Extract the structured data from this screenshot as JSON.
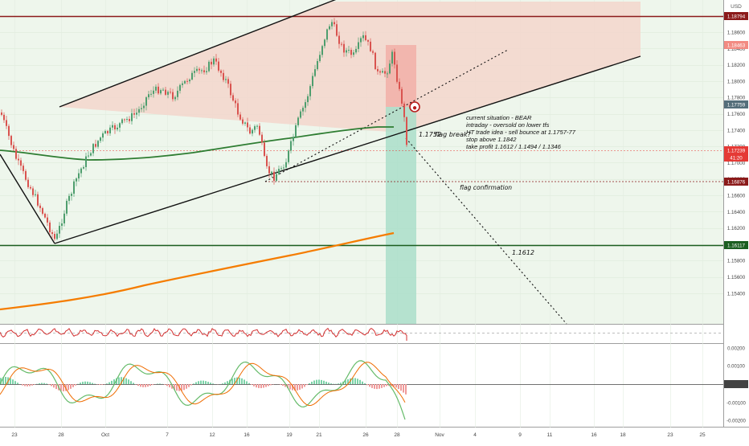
{
  "window": {
    "currency": "USD"
  },
  "colors": {
    "bg_green": "#eef6ec",
    "pink_zone": "#f3d6cc",
    "red_box": "#f2a9a2",
    "teal_box": "#a6ddc8",
    "candle_up": "#4e9e6e",
    "candle_down": "#d9534f",
    "ma_green": "#2e7d32",
    "ma_orange": "#f57c00",
    "top_line": "#8b1a1a",
    "support_line": "#1b5e20",
    "price_tag": "#e53935"
  },
  "price_scale": {
    "ticks": [
      "1.18600",
      "1.18400",
      "1.18200",
      "1.18000",
      "1.17800",
      "1.17600",
      "1.17400",
      "1.17200",
      "1.17000",
      "1.16800",
      "1.16600",
      "1.16400",
      "1.16200",
      "1.16000",
      "1.15800",
      "1.15600",
      "1.15400"
    ],
    "tags": [
      {
        "id": "top",
        "label": "1.18794",
        "color": "#8b1a1a"
      },
      {
        "id": "entry",
        "label": "1.18463",
        "color": "#f28b82"
      },
      {
        "id": "break",
        "label": "1.17759",
        "color": "#546e7a"
      },
      {
        "id": "last",
        "label": "1.17239",
        "color": "#e53935"
      },
      {
        "id": "countdown",
        "label": "41:20",
        "color": "#e53935"
      },
      {
        "id": "flag",
        "label": "1.16876",
        "color": "#8b1a1a"
      },
      {
        "id": "support",
        "label": "1.16117",
        "color": "#1b5e20"
      }
    ]
  },
  "rsi_panel": {
    "ticks": []
  },
  "macd_panel": {
    "ticks": [
      "0.00200",
      "0.00100",
      "0.00000",
      "-0.00100",
      "-0.00200"
    ]
  },
  "time_axis": {
    "labels": [
      "23",
      "28",
      "Oct",
      "7",
      "12",
      "16",
      "19",
      "21",
      "26",
      "28",
      "Nov",
      "4",
      "9",
      "11",
      "16",
      "18",
      "23",
      "25"
    ]
  },
  "annotations": {
    "analysis": [
      "current situation - BEAR",
      "intraday - oversold on lower tfs",
      "HT trade idea - sell bounce at 1.1757-77",
      "stop above 1.1842",
      "take profit  1.1612 / 1.1494 / 1.1346"
    ],
    "flag_break_price": "1.1752",
    "flag_break_text": "flag break?",
    "flag_confirm": "flag confirmation",
    "target": "1.1612"
  },
  "chart_data": {
    "type": "candlestick",
    "symbol_quote": "USD",
    "y_range": [
      1.1525,
      1.1889
    ],
    "levels": {
      "top": 1.18794,
      "entry_zone_top": 1.18463,
      "break": 1.17759,
      "last_price": 1.17239,
      "flag_confirmation": 1.16876,
      "support": 1.16117
    },
    "trade_idea": {
      "entry_bounce": [
        1.1757,
        1.1777
      ],
      "stop": 1.1842,
      "take_profit": [
        1.1612,
        1.1494,
        1.1346
      ]
    },
    "indicators": [
      "moving average (green)",
      "moving average (orange)",
      "RSI",
      "MACD"
    ]
  }
}
